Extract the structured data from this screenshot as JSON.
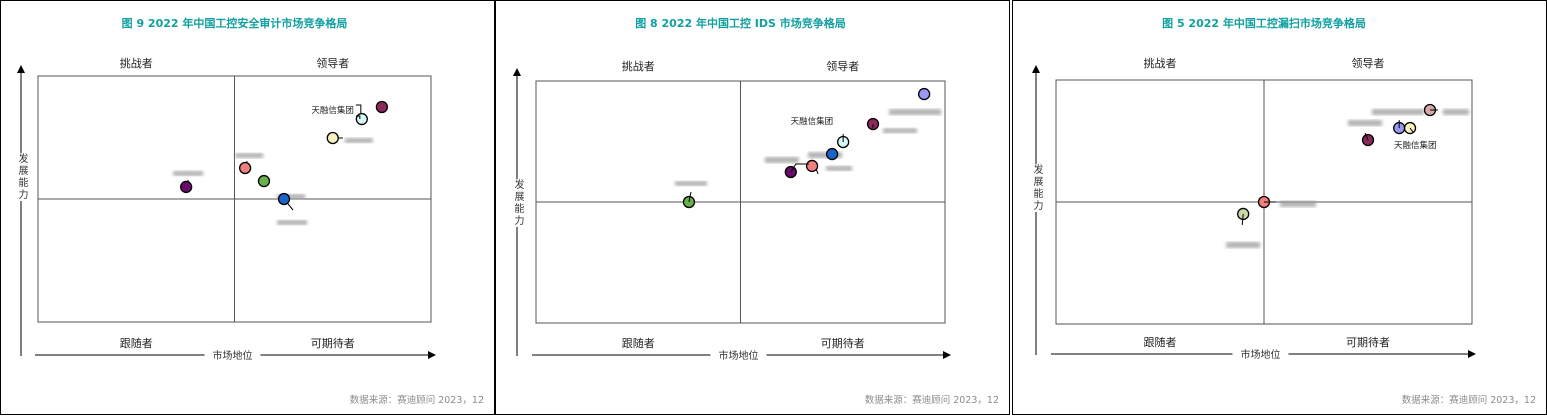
{
  "colors": {
    "title": "#12a0a0",
    "axis": "#333333",
    "source": "#8c8c8c",
    "label": "#222222"
  },
  "chart_data": [
    {
      "type": "scatter",
      "title": "图 9  2022 年中国工控安全审计市场竞争格局",
      "xlabel": "市场地位",
      "ylabel": "发展能力",
      "quadrants": {
        "top_left": "挑战者",
        "top_right": "领导者",
        "bottom_left": "跟随者",
        "bottom_right": "可期待者"
      },
      "xlim": [
        0,
        100
      ],
      "ylim": [
        0,
        100
      ],
      "divider": [
        50,
        50
      ],
      "points": [
        {
          "label": "",
          "x": 87.5,
          "y": 87.4,
          "color": "#8b2a5a"
        },
        {
          "label": "天融信集团",
          "x": 82.4,
          "y": 82.5,
          "color": "#d6f8f8"
        },
        {
          "label": "",
          "x": 75.0,
          "y": 74.8,
          "color": "#f7f2c0"
        },
        {
          "label": "",
          "x": 52.7,
          "y": 62.6,
          "color": "#f08080"
        },
        {
          "label": "",
          "x": 57.5,
          "y": 57.3,
          "color": "#6ab04c"
        },
        {
          "label": "",
          "x": 62.6,
          "y": 50.0,
          "color": "#1a66c8"
        },
        {
          "label": "",
          "x": 37.7,
          "y": 54.9,
          "color": "#6a0a6a"
        }
      ],
      "source": "数据来源：赛迪顾问  2023，12"
    },
    {
      "type": "scatter",
      "title": "图 8  2022 年中国工控 IDS 市场竞争格局",
      "xlabel": "市场地位",
      "ylabel": "发展能力",
      "quadrants": {
        "top_left": "挑战者",
        "top_right": "领导者",
        "bottom_left": "跟随者",
        "bottom_right": "可期待者"
      },
      "xlim": [
        0,
        100
      ],
      "ylim": [
        0,
        100
      ],
      "divider": [
        50,
        50
      ],
      "points": [
        {
          "label": "",
          "x": 94.9,
          "y": 94.6,
          "color": "#9999f5"
        },
        {
          "label": "",
          "x": 82.4,
          "y": 82.2,
          "color": "#8b2a5a"
        },
        {
          "label": "天融信集团",
          "x": 75.1,
          "y": 74.8,
          "color": "#d6f8f8"
        },
        {
          "label": "",
          "x": 72.4,
          "y": 69.8,
          "color": "#1a66c8"
        },
        {
          "label": "",
          "x": 67.5,
          "y": 64.9,
          "color": "#f08080"
        },
        {
          "label": "",
          "x": 62.3,
          "y": 62.4,
          "color": "#6a0a6a"
        },
        {
          "label": "",
          "x": 37.4,
          "y": 50.0,
          "color": "#6ab04c"
        }
      ],
      "source": "数据来源：赛迪顾问  2023，12"
    },
    {
      "type": "scatter",
      "title": "图 5  2022 年中国工控漏扫市场竞争格局",
      "xlabel": "市场地位",
      "ylabel": "发展能力",
      "quadrants": {
        "top_left": "挑战者",
        "top_right": "领导者",
        "bottom_left": "跟随者",
        "bottom_right": "可期待者"
      },
      "xlim": [
        0,
        100
      ],
      "ylim": [
        0,
        100
      ],
      "divider": [
        50,
        50
      ],
      "points": [
        {
          "label": "",
          "x": 89.9,
          "y": 87.7,
          "color": "#d8a8a8"
        },
        {
          "label": "",
          "x": 82.5,
          "y": 80.3,
          "color": "#9999f5"
        },
        {
          "label": "天融信集团",
          "x": 85.1,
          "y": 80.3,
          "color": "#f7f2c0"
        },
        {
          "label": "",
          "x": 75.0,
          "y": 75.4,
          "color": "#8b2a5a"
        },
        {
          "label": "",
          "x": 50.0,
          "y": 50.0,
          "color": "#f08080"
        },
        {
          "label": "",
          "x": 45.0,
          "y": 45.1,
          "color": "#c8d8a8"
        }
      ],
      "source": "数据来源：赛迪顾问  2023，12"
    }
  ]
}
